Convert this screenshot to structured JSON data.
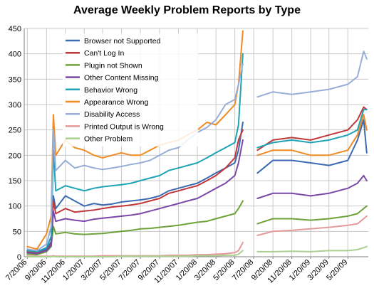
{
  "chart_data": {
    "type": "line",
    "title": "Average Weekly Problem Reports by Type",
    "xlabel": "",
    "ylabel": "",
    "ylim": [
      0,
      450
    ],
    "yticks": [
      0,
      50,
      100,
      150,
      200,
      250,
      300,
      350,
      400,
      450
    ],
    "grid": true,
    "legend_position": "top-left",
    "x_tick_labels": [
      "7/20/06",
      "9/20/06",
      "11/20/06",
      "1/20/07",
      "3/20/07",
      "5/20/07",
      "7/20/07",
      "9/20/07",
      "11/20/07",
      "1/20/08",
      "3/20/08",
      "5/20/08",
      "7/20/08",
      "9/20/08",
      "11/20/08",
      "1/20/09",
      "3/20/09",
      "5/20/09"
    ],
    "segments": [
      {
        "x": [
          "7/20/06",
          "8/20/06",
          "9/20/06",
          "10/5/06",
          "10/12/06",
          "10/20/06",
          "11/20/06",
          "12/20/06",
          "1/20/07",
          "2/20/07",
          "3/20/07",
          "4/20/07",
          "5/20/07",
          "6/20/07",
          "7/20/07",
          "8/20/07",
          "9/20/07",
          "10/20/07",
          "11/20/07",
          "12/20/07",
          "1/20/08",
          "2/20/08",
          "3/20/08",
          "4/20/08",
          "5/20/08",
          "6/1/08",
          "6/15/08"
        ],
        "series": [
          {
            "name": "Browser not Supported",
            "values": [
              12,
              8,
              15,
              30,
              120,
              95,
              120,
              110,
              100,
              105,
              102,
              104,
              108,
              110,
              112,
              115,
              120,
              130,
              135,
              140,
              145,
              155,
              165,
              175,
              185,
              210,
              265
            ]
          },
          {
            "name": "Can't Log In",
            "values": [
              10,
              7,
              12,
              25,
              110,
              85,
              95,
              88,
              90,
              92,
              95,
              98,
              100,
              102,
              105,
              110,
              115,
              125,
              130,
              135,
              140,
              150,
              160,
              175,
              195,
              230,
              250
            ]
          },
          {
            "name": "Plugin not Shown",
            "values": [
              5,
              4,
              10,
              20,
              60,
              45,
              48,
              45,
              44,
              45,
              46,
              48,
              50,
              52,
              55,
              56,
              58,
              60,
              62,
              65,
              68,
              70,
              75,
              80,
              85,
              95,
              110
            ]
          },
          {
            "name": "Other Content Missing",
            "values": [
              8,
              6,
              12,
              22,
              90,
              70,
              75,
              72,
              70,
              74,
              76,
              78,
              80,
              82,
              85,
              90,
              95,
              100,
              105,
              110,
              115,
              125,
              135,
              145,
              160,
              185,
              230
            ]
          },
          {
            "name": "Behavior Wrong",
            "values": [
              12,
              10,
              18,
              40,
              210,
              130,
              140,
              135,
              130,
              135,
              138,
              140,
              142,
              145,
              150,
              155,
              160,
              170,
              175,
              180,
              185,
              195,
              205,
              215,
              225,
              260,
              400
            ]
          },
          {
            "name": "Appearance Wrong",
            "values": [
              20,
              15,
              45,
              80,
              280,
              200,
              230,
              215,
              210,
              200,
              195,
              200,
              205,
              200,
              200,
              210,
              220,
              225,
              230,
              240,
              250,
              265,
              260,
              280,
              300,
              340,
              445
            ]
          },
          {
            "name": "Disability Access",
            "values": [
              15,
              12,
              25,
              60,
              250,
              170,
              190,
              175,
              180,
              175,
              172,
              175,
              178,
              182,
              185,
              190,
              200,
              210,
              215,
              230,
              245,
              255,
              270,
              300,
              310,
              340,
              380
            ]
          },
          {
            "name": "Printed Output is Wrong",
            "values": [
              1,
              1,
              1,
              1,
              2,
              1,
              1,
              1,
              1,
              1,
              2,
              2,
              2,
              2,
              2,
              2,
              2,
              3,
              3,
              3,
              4,
              4,
              5,
              6,
              8,
              12,
              28
            ]
          },
          {
            "name": "Other Problem",
            "values": [
              0,
              0,
              0,
              0,
              1,
              0,
              0,
              0,
              0,
              0,
              0,
              0,
              1,
              1,
              1,
              1,
              1,
              1,
              1,
              1,
              2,
              2,
              2,
              3,
              3,
              5,
              12
            ]
          }
        ]
      },
      {
        "x": [
          "8/1/08",
          "9/20/08",
          "11/20/08",
          "1/20/09",
          "3/20/09",
          "5/20/09",
          "6/20/09",
          "7/10/09",
          "7/20/09"
        ],
        "series": [
          {
            "name": "Browser not Supported",
            "values": [
              165,
              190,
              190,
              185,
              180,
              190,
              230,
              270,
              205
            ]
          },
          {
            "name": "Can't Log In",
            "values": [
              210,
              230,
              235,
              230,
              240,
              250,
              270,
              295,
              290
            ]
          },
          {
            "name": "Plugin not Shown",
            "values": [
              65,
              75,
              75,
              72,
              75,
              80,
              85,
              95,
              100
            ]
          },
          {
            "name": "Other Content Missing",
            "values": [
              115,
              125,
              125,
              120,
              125,
              135,
              145,
              160,
              150
            ]
          },
          {
            "name": "Behavior Wrong",
            "values": [
              215,
              225,
              230,
              225,
              230,
              240,
              250,
              290,
              290
            ]
          },
          {
            "name": "Appearance Wrong",
            "values": [
              200,
              210,
              210,
              200,
              200,
              210,
              240,
              280,
              250
            ]
          },
          {
            "name": "Disability Access",
            "values": [
              315,
              325,
              320,
              325,
              330,
              340,
              355,
              405,
              390
            ]
          },
          {
            "name": "Printed Output is Wrong",
            "values": [
              42,
              50,
              52,
              55,
              58,
              62,
              65,
              75,
              80
            ]
          },
          {
            "name": "Other Problem",
            "values": [
              10,
              10,
              11,
              10,
              12,
              12,
              14,
              18,
              20
            ]
          }
        ]
      }
    ],
    "colors": {
      "Browser not Supported": "#3c6bb3",
      "Can't Log In": "#c0393b",
      "Plugin not Shown": "#6fa23a",
      "Other Content Missing": "#7a49a7",
      "Behavior Wrong": "#1fa3b5",
      "Appearance Wrong": "#f08a22",
      "Disability Access": "#98aed8",
      "Printed Output is Wrong": "#e4999a",
      "Other Problem": "#a9d08e"
    }
  }
}
